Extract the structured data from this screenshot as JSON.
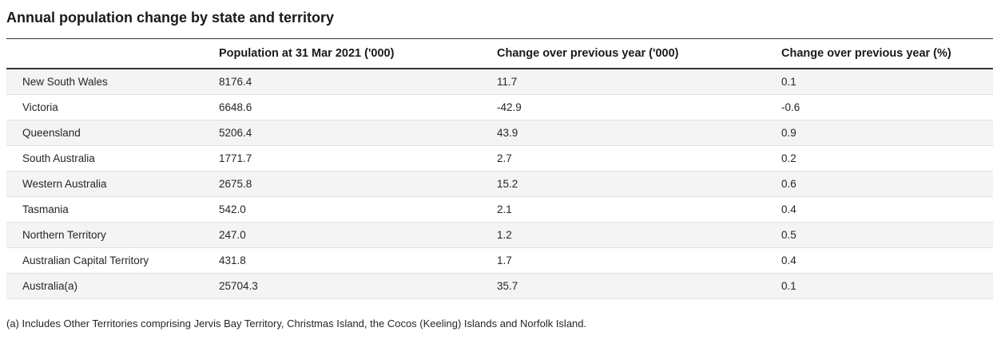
{
  "chart_data": {
    "type": "table",
    "title": "Annual population change by state and territory",
    "columns": [
      "",
      "Population at 31 Mar 2021 ('000)",
      "Change over previous year ('000)",
      "Change over previous year (%)"
    ],
    "rows": [
      [
        "New South Wales",
        "8176.4",
        "11.7",
        "0.1"
      ],
      [
        "Victoria",
        "6648.6",
        "-42.9",
        "-0.6"
      ],
      [
        "Queensland",
        "5206.4",
        "43.9",
        "0.9"
      ],
      [
        "South Australia",
        "1771.7",
        "2.7",
        "0.2"
      ],
      [
        "Western Australia",
        "2675.8",
        "15.2",
        "0.6"
      ],
      [
        "Tasmania",
        "542.0",
        "2.1",
        "0.4"
      ],
      [
        "Northern Territory",
        "247.0",
        "1.2",
        "0.5"
      ],
      [
        "Australian Capital Territory",
        "431.8",
        "1.7",
        "0.4"
      ],
      [
        "Australia(a)",
        "25704.3",
        "35.7",
        "0.1"
      ]
    ],
    "footnote": "(a) Includes Other Territories comprising Jervis Bay Territory, Christmas Island, the Cocos (Keeling) Islands and Norfolk Island.",
    "layout": {
      "stripe_color": "#f4f4f4",
      "rule_color": "#333333",
      "row_border_color": "#e0e0e0",
      "legend_position": "none",
      "grid": "horizontal-stripes"
    }
  }
}
